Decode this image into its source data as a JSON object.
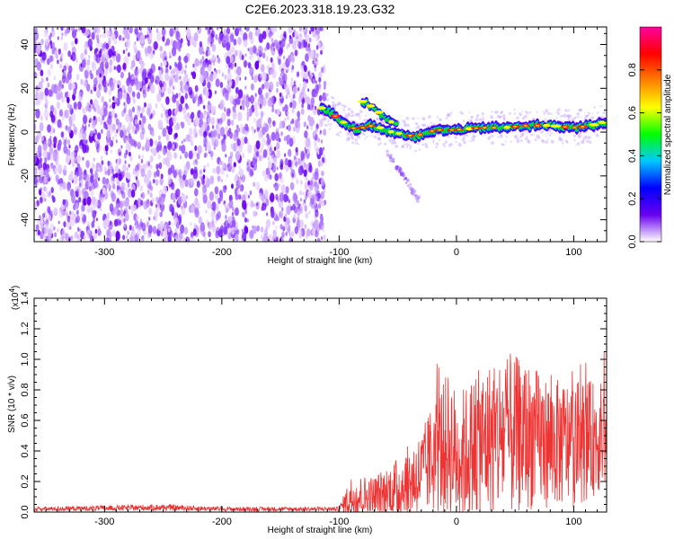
{
  "title": "C2E6.2023.318.19.23.G32",
  "chart_data": [
    {
      "type": "heatmap",
      "name": "spectrogram",
      "xlabel": "Height of straight line (km)",
      "ylabel": "Frequency (Hz)",
      "xlim": [
        -360,
        128
      ],
      "ylim": [
        -50,
        48
      ],
      "x_ticks": [
        -300,
        -200,
        -100,
        0,
        100
      ],
      "y_ticks": [
        -40,
        -20,
        0,
        20,
        40
      ],
      "noise_region_x": [
        -360,
        -112
      ],
      "signal_track": [
        {
          "x": -115,
          "y": 11
        },
        {
          "x": -105,
          "y": 8
        },
        {
          "x": -95,
          "y": 4
        },
        {
          "x": -85,
          "y": 1
        },
        {
          "x": -75,
          "y": 3
        },
        {
          "x": -65,
          "y": 2
        },
        {
          "x": -55,
          "y": 0
        },
        {
          "x": -45,
          "y": -1
        },
        {
          "x": -35,
          "y": -2
        },
        {
          "x": -25,
          "y": 0
        },
        {
          "x": -15,
          "y": 1
        },
        {
          "x": 0,
          "y": 1
        },
        {
          "x": 20,
          "y": 2
        },
        {
          "x": 40,
          "y": 2
        },
        {
          "x": 60,
          "y": 3
        },
        {
          "x": 80,
          "y": 3
        },
        {
          "x": 100,
          "y": 2
        },
        {
          "x": 115,
          "y": 3
        },
        {
          "x": 128,
          "y": 5
        }
      ],
      "secondary_track": [
        {
          "x": -80,
          "y": 14
        },
        {
          "x": -70,
          "y": 11
        },
        {
          "x": -60,
          "y": 6
        },
        {
          "x": -50,
          "y": 3
        }
      ],
      "faint_branch": [
        {
          "x": -60,
          "y": -8
        },
        {
          "x": -45,
          "y": -20
        },
        {
          "x": -32,
          "y": -31
        }
      ]
    },
    {
      "type": "colorbar",
      "label": "Normalized spectral amplitude",
      "range": [
        0,
        1
      ],
      "ticks": [
        0.0,
        0.2,
        0.4,
        0.6,
        0.8
      ],
      "tick_labels": [
        "0.0",
        "0.2",
        "0.4",
        "0.6",
        "0.8"
      ],
      "colors": [
        "#ffffff",
        "#6a00f0",
        "#0000ff",
        "#00c8ff",
        "#00ff00",
        "#ffff00",
        "#ff8000",
        "#ff0000",
        "#ff00a0"
      ]
    },
    {
      "type": "line",
      "name": "snr",
      "xlabel": "Height of straight line (km)",
      "ylabel": "SNR (10 * v/v)",
      "yscale_label": "(x10",
      "yscale_exp": "4",
      "xlim": [
        -360,
        128
      ],
      "ylim": [
        0,
        1.4
      ],
      "x_ticks": [
        -300,
        -200,
        -100,
        0,
        100
      ],
      "y_ticks": [
        0.0,
        0.2,
        0.4,
        0.6,
        0.8,
        1.0,
        1.2,
        1.4
      ],
      "y_tick_labels": [
        "0.0",
        "0.2",
        "0.4",
        "0.6",
        "0.8",
        "1.0",
        "1.2",
        "1.4"
      ],
      "color": "#ee3333",
      "envelope": [
        {
          "x": -360,
          "base": 0.02,
          "spread": 0.02
        },
        {
          "x": -250,
          "base": 0.03,
          "spread": 0.03
        },
        {
          "x": -200,
          "base": 0.02,
          "spread": 0.02
        },
        {
          "x": -100,
          "base": 0.02,
          "spread": 0.02
        },
        {
          "x": -90,
          "base": 0.1,
          "spread": 0.2
        },
        {
          "x": -70,
          "base": 0.1,
          "spread": 0.2
        },
        {
          "x": -50,
          "base": 0.15,
          "spread": 0.3
        },
        {
          "x": -30,
          "base": 0.25,
          "spread": 0.4
        },
        {
          "x": -15,
          "base": 0.4,
          "spread": 0.6
        },
        {
          "x": -5,
          "base": 0.45,
          "spread": 0.7
        },
        {
          "x": 0,
          "base": 0.35,
          "spread": 0.6
        },
        {
          "x": 20,
          "base": 0.45,
          "spread": 0.7
        },
        {
          "x": 40,
          "base": 0.5,
          "spread": 0.8
        },
        {
          "x": 60,
          "base": 0.5,
          "spread": 0.7
        },
        {
          "x": 80,
          "base": 0.45,
          "spread": 0.6
        },
        {
          "x": 100,
          "base": 0.45,
          "spread": 0.6
        },
        {
          "x": 128,
          "base": 0.5,
          "spread": 0.5
        }
      ]
    }
  ]
}
